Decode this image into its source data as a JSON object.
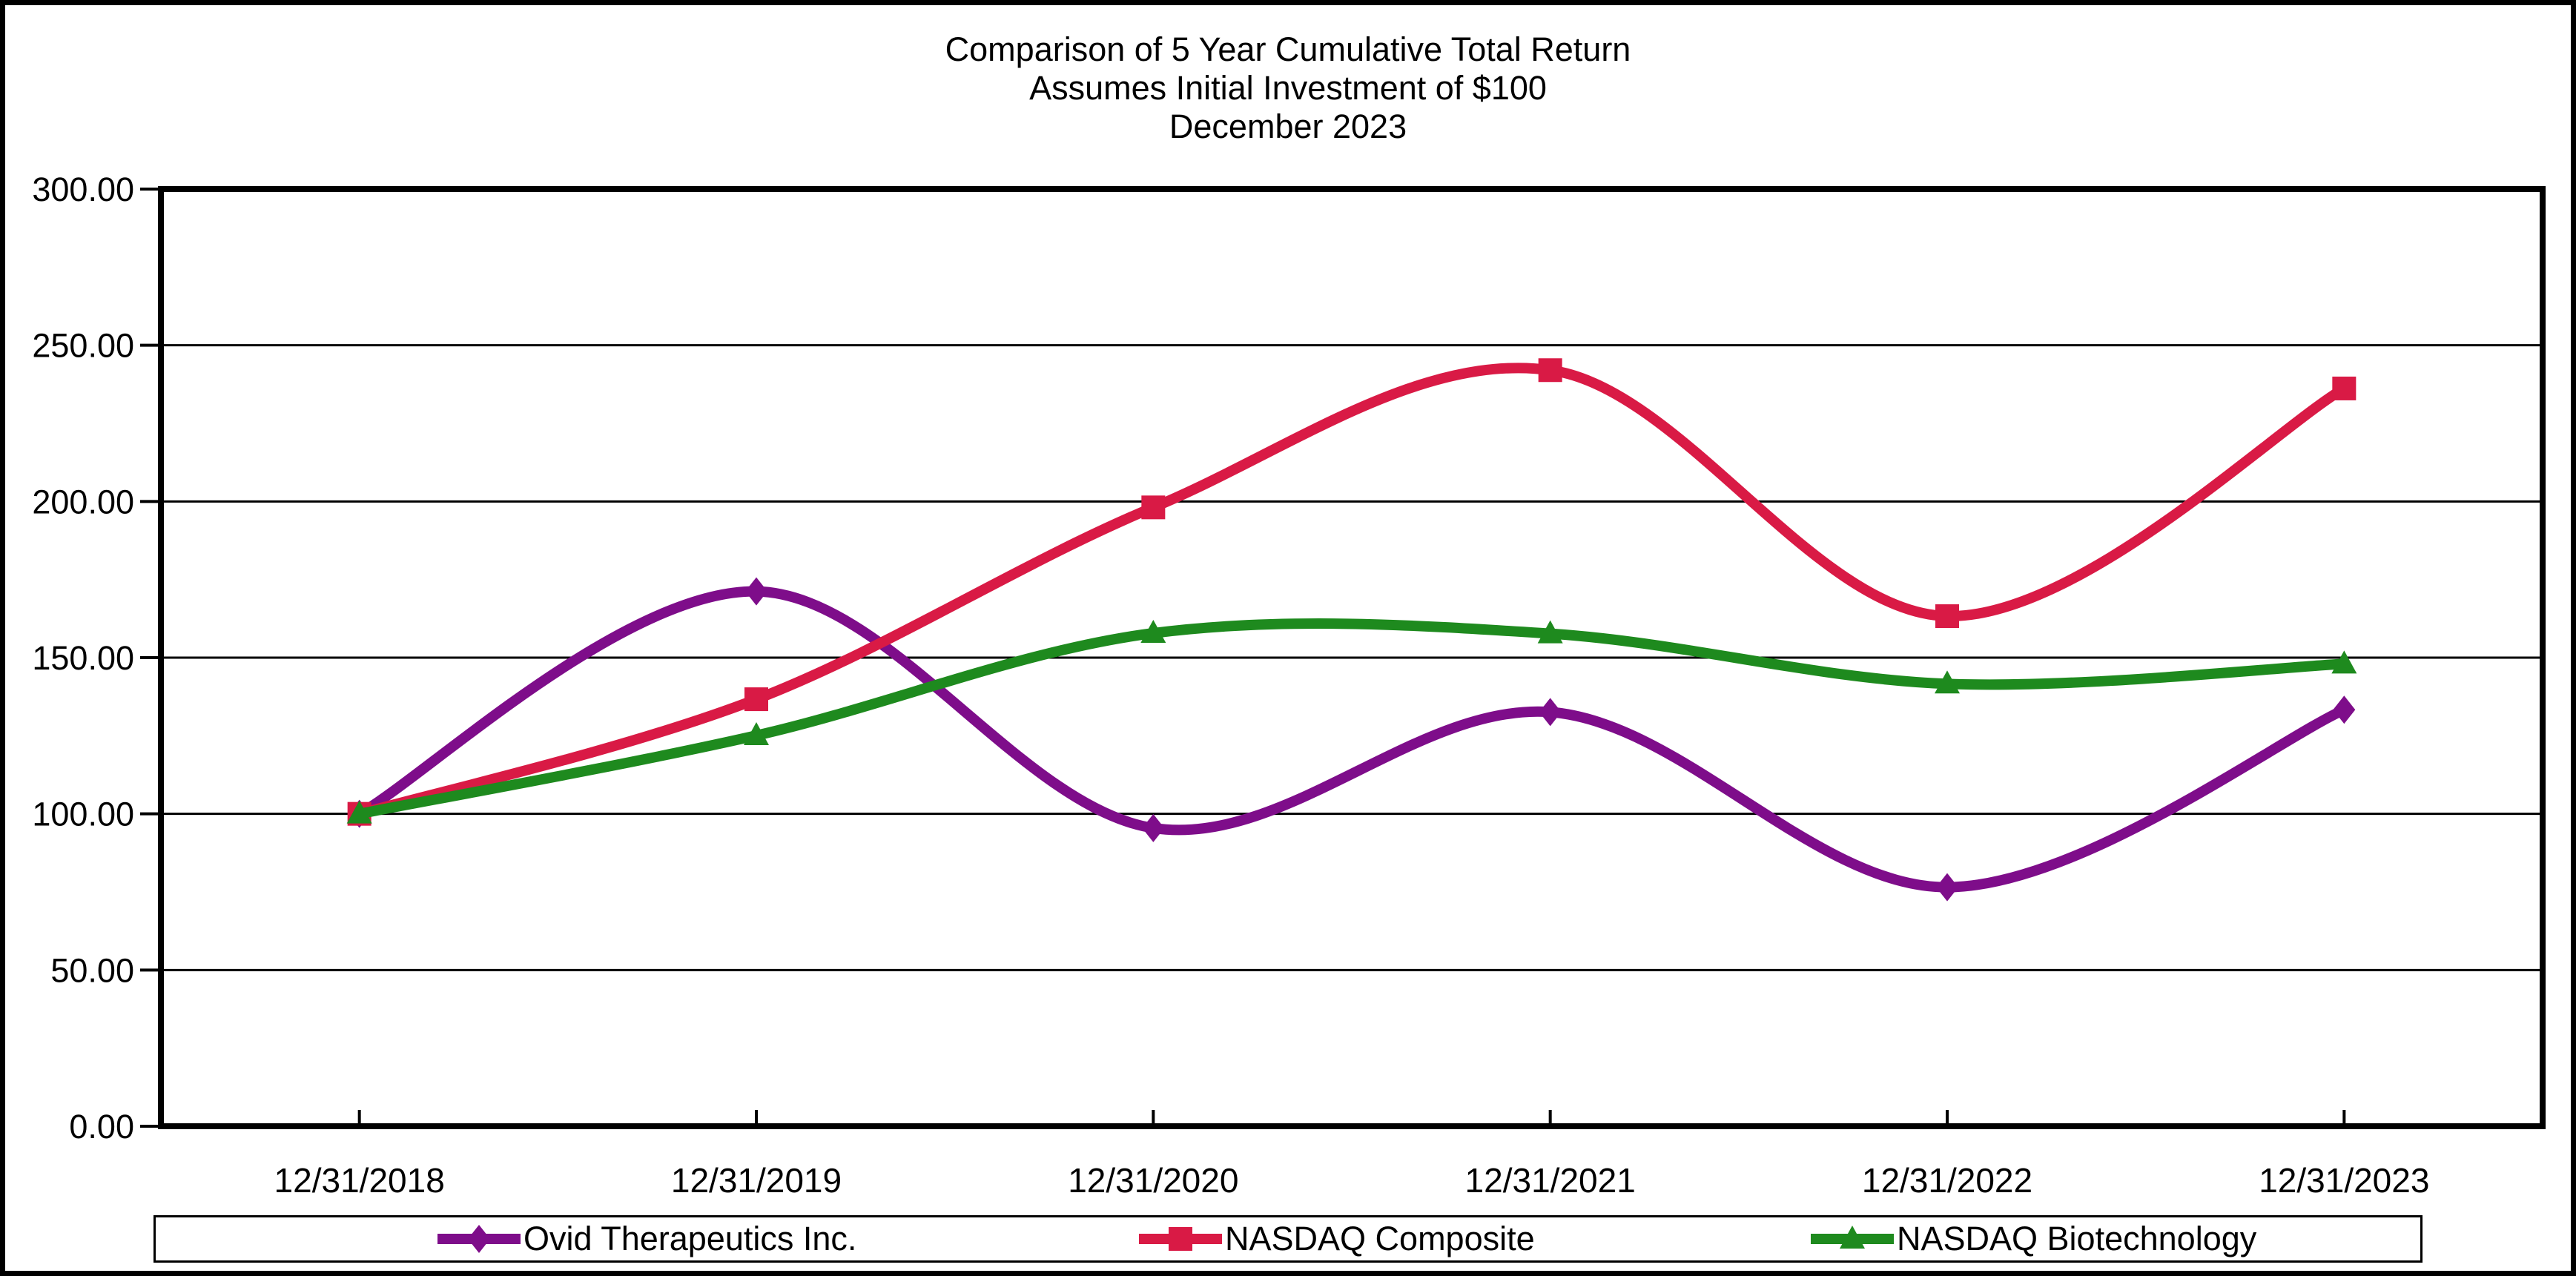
{
  "chart_data": {
    "type": "line",
    "smooth": true,
    "title_lines": [
      "Comparison of 5 Year Cumulative Total Return",
      "Assumes Initial Investment of $100",
      "December 2023"
    ],
    "categories": [
      "12/31/2018",
      "12/31/2019",
      "12/31/2020",
      "12/31/2021",
      "12/31/2022",
      "12/31/2023"
    ],
    "series": [
      {
        "name": "Ovid Therapeutics Inc.",
        "marker": "diamond",
        "color": "#7E0D8A",
        "values": [
          100.0,
          171.21,
          95.45,
          132.58,
          76.52,
          133.33
        ]
      },
      {
        "name": "NASDAQ Composite",
        "marker": "square",
        "color": "#D91A45",
        "values": [
          100.0,
          136.69,
          198.1,
          242.03,
          163.28,
          236.17
        ]
      },
      {
        "name": "NASDAQ Biotechnology",
        "marker": "triangle",
        "color": "#1E8A1E",
        "values": [
          100.0,
          125.08,
          157.84,
          157.69,
          141.62,
          148.02
        ]
      }
    ],
    "ylim": [
      0,
      300
    ],
    "ytick_labels": [
      "0.00",
      "50.00",
      "100.00",
      "150.00",
      "200.00",
      "250.00",
      "300.00"
    ],
    "grid": true,
    "grid_color": "#000000",
    "legend_position": "bottom"
  }
}
